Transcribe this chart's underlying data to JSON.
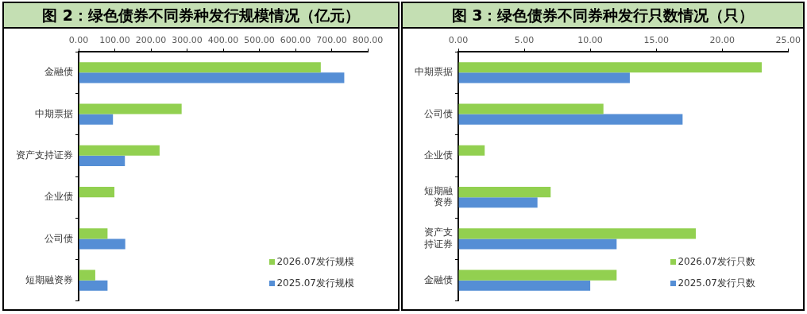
{
  "chart_data": [
    {
      "type": "bar",
      "orientation": "horizontal",
      "title": "图 2：绿色债券不同券种发行规模情况（亿元）",
      "categories": [
        "金融债",
        "中期票据",
        "资产支持证券",
        "企业债",
        "公司债",
        "短期融资券"
      ],
      "series": [
        {
          "name": "2026.07发行规模",
          "color": "#92d050",
          "values": [
            670,
            285,
            224,
            99,
            80,
            46
          ]
        },
        {
          "name": "2025.07发行规模",
          "color": "#558ed5",
          "values": [
            735,
            95,
            128,
            null,
            129,
            80
          ]
        }
      ],
      "xlim": [
        0,
        800
      ],
      "xticks": [
        {
          "value": 0,
          "label": "0.00"
        },
        {
          "value": 100,
          "label": "100.00"
        },
        {
          "value": 200,
          "label": "200.00"
        },
        {
          "value": 300,
          "label": "300.00"
        },
        {
          "value": 400,
          "label": "400.00"
        },
        {
          "value": 500,
          "label": "500.00"
        },
        {
          "value": 600,
          "label": "600.00"
        },
        {
          "value": 700,
          "label": "700.00"
        },
        {
          "value": 800,
          "label": "800.00"
        }
      ],
      "grid": false,
      "legend": "bottom right"
    },
    {
      "type": "bar",
      "orientation": "horizontal",
      "title": "图 3：绿色债券不同券种发行只数情况（只）",
      "categories": [
        "中期票据",
        "公司债",
        "企业债",
        "短期融资券",
        "资产支持证券",
        "金融债"
      ],
      "series": [
        {
          "name": "2026.07发行只数",
          "color": "#92d050",
          "values": [
            23,
            11,
            2,
            7,
            18,
            12
          ]
        },
        {
          "name": "2025.07发行只数",
          "color": "#558ed5",
          "values": [
            13,
            17,
            null,
            6,
            12,
            10
          ]
        }
      ],
      "xlim": [
        0,
        25
      ],
      "xticks": [
        {
          "value": 0,
          "label": "0.00"
        },
        {
          "value": 5,
          "label": "5.00"
        },
        {
          "value": 10,
          "label": "10.00"
        },
        {
          "value": 15,
          "label": "15.00"
        },
        {
          "value": 20,
          "label": "20.00"
        },
        {
          "value": 25,
          "label": "25.00"
        }
      ],
      "grid": false,
      "legend": "bottom right"
    }
  ]
}
